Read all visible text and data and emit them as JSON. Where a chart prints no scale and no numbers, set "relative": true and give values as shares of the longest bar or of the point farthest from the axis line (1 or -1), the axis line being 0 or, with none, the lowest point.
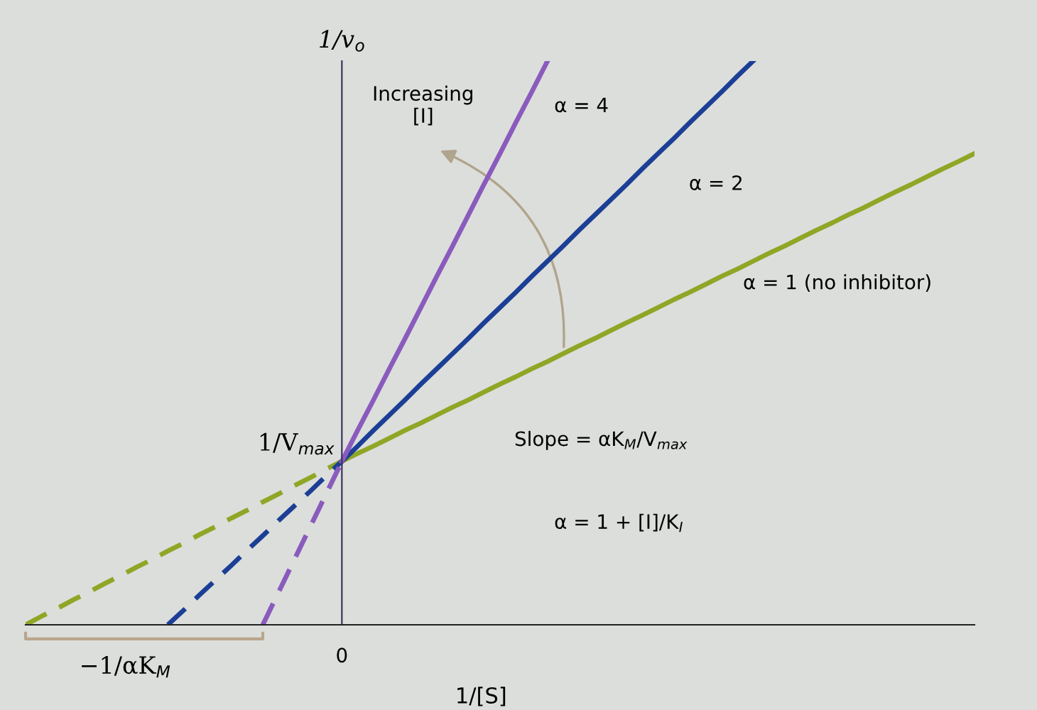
{
  "chart_data": {
    "type": "line",
    "relative": true,
    "xlabel": "1/[S]",
    "ylabel": "1/v$_{o}$",
    "categories": [
      null,
      null,
      null,
      null,
      null,
      null,
      null,
      null,
      null,
      null,
      null,
      null,
      null,
      null,
      null,
      null,
      null,
      null,
      null,
      null,
      null,
      null,
      null,
      null,
      null,
      null,
      null,
      null,
      null,
      null,
      null,
      null,
      null,
      null,
      null,
      null,
      null,
      null,
      null,
      null,
      null,
      null,
      null,
      null,
      null,
      null,
      null,
      null,
      null,
      null,
      null,
      null,
      null,
      null,
      null,
      null,
      null,
      null,
      null,
      null,
      null
    ],
    "series": [
      {
        "color": "#8fa626",
        "line_style": "dashed",
        "values": [
          0,
          0.015,
          0.029,
          0.044,
          0.058,
          0.073,
          0.087,
          0.102,
          0.116,
          0.131,
          0.145,
          0.16,
          0.174,
          0.189,
          0.203,
          0.218,
          0.232,
          0.247,
          0.261,
          0.276,
          0.29,
          null,
          null,
          null,
          null,
          null,
          null,
          null,
          null,
          null,
          null,
          null,
          null,
          null,
          null,
          null,
          null,
          null,
          null,
          null,
          null,
          null,
          null,
          null,
          null,
          null,
          null,
          null,
          null,
          null,
          null,
          null,
          null,
          null,
          null,
          null,
          null,
          null,
          null,
          null,
          null
        ]
      },
      {
        "color": "#8fa626",
        "line_style": "solid",
        "values": [
          null,
          null,
          null,
          null,
          null,
          null,
          null,
          null,
          null,
          null,
          null,
          null,
          null,
          null,
          null,
          null,
          null,
          null,
          null,
          null,
          0.29,
          0.304,
          0.317,
          0.331,
          0.345,
          0.358,
          0.372,
          0.386,
          0.399,
          0.413,
          0.427,
          0.44,
          0.454,
          0.467,
          0.481,
          0.495,
          0.508,
          0.522,
          0.536,
          0.549,
          0.563,
          0.577,
          0.59,
          0.604,
          0.618,
          0.631,
          0.645,
          0.659,
          0.672,
          0.686,
          0.7,
          0.713,
          0.727,
          0.74,
          0.754,
          0.768,
          0.781,
          0.795,
          0.809,
          0.822,
          0.836
        ]
      },
      {
        "color": "#1c3f96",
        "line_style": "dashed",
        "values": [
          null,
          null,
          null,
          null,
          null,
          null,
          null,
          null,
          null,
          0,
          0.026,
          0.053,
          0.079,
          0.105,
          0.132,
          0.158,
          0.185,
          0.211,
          0.237,
          0.264,
          0.29,
          null,
          null,
          null,
          null,
          null,
          null,
          null,
          null,
          null,
          null,
          null,
          null,
          null,
          null,
          null,
          null,
          null,
          null,
          null,
          null,
          null,
          null,
          null,
          null,
          null,
          null,
          null,
          null,
          null,
          null,
          null,
          null,
          null,
          null,
          null,
          null,
          null,
          null,
          null,
          null
        ]
      },
      {
        "color": "#1c3f96",
        "line_style": "solid",
        "values": [
          null,
          null,
          null,
          null,
          null,
          null,
          null,
          null,
          null,
          null,
          null,
          null,
          null,
          null,
          null,
          null,
          null,
          null,
          null,
          null,
          0.29,
          0.317,
          0.345,
          0.372,
          0.399,
          0.427,
          0.454,
          0.481,
          0.508,
          0.536,
          0.563,
          0.59,
          0.618,
          0.645,
          0.672,
          0.7,
          0.727,
          0.754,
          0.781,
          0.809,
          0.836,
          0.863,
          0.891,
          0.918,
          0.945,
          0.973,
          1.0,
          null,
          null,
          null,
          null,
          null,
          null,
          null,
          null,
          null,
          null,
          null,
          null,
          null,
          null
        ]
      },
      {
        "color": "#8a5bbd",
        "line_style": "dashed",
        "values": [
          null,
          null,
          null,
          null,
          null,
          null,
          null,
          null,
          null,
          null,
          null,
          null,
          null,
          null,
          null,
          0,
          0.058,
          0.116,
          0.174,
          0.232,
          0.29,
          null,
          null,
          null,
          null,
          null,
          null,
          null,
          null,
          null,
          null,
          null,
          null,
          null,
          null,
          null,
          null,
          null,
          null,
          null,
          null,
          null,
          null,
          null,
          null,
          null,
          null,
          null,
          null,
          null,
          null,
          null,
          null,
          null,
          null,
          null,
          null,
          null,
          null,
          null,
          null
        ]
      },
      {
        "color": "#8a5bbd",
        "line_style": "solid",
        "values": [
          null,
          null,
          null,
          null,
          null,
          null,
          null,
          null,
          null,
          null,
          null,
          null,
          null,
          null,
          null,
          null,
          null,
          null,
          null,
          null,
          0.29,
          0.345,
          0.399,
          0.454,
          0.508,
          0.563,
          0.618,
          0.672,
          0.727,
          0.782,
          0.836,
          0.891,
          0.945,
          1.0,
          null,
          null,
          null,
          null,
          null,
          null,
          null,
          null,
          null,
          null,
          null,
          null,
          null,
          null,
          null,
          null,
          null,
          null,
          null,
          null,
          null,
          null,
          null,
          null,
          null,
          null,
          null
        ]
      }
    ],
    "annotations": [
      "1/V$_{max}$",
      "α = 4",
      "α = 2",
      "α = 1 (no inhibitor)",
      "−1/αK$_{M}$",
      "0",
      "Increasing\n[I]",
      "Slope = αK$_{M}$/V$_{max}$",
      "α = 1 + [I]/K$_{I}$"
    ]
  }
}
